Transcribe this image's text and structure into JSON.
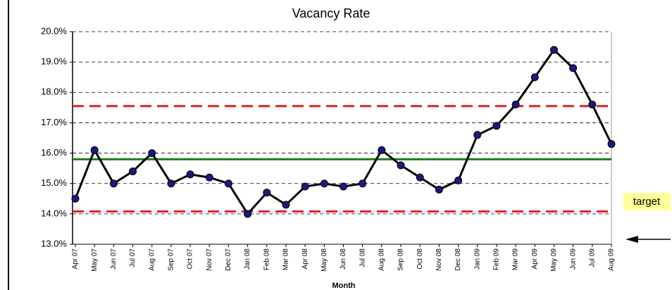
{
  "chart_data": {
    "type": "line",
    "title": "Vacancy Rate",
    "x_label": "Month",
    "categories": [
      "Apr 07",
      "May 07",
      "Jun 07",
      "Jul 07",
      "Aug 07",
      "Sep 07",
      "Oct 07",
      "Nov 07",
      "Dec 07",
      "Jan 08",
      "Feb 08",
      "Mar 08",
      "Apr 08",
      "May 08",
      "Jun 08",
      "Jul 08",
      "Aug 08",
      "Sep 08",
      "Oct 08",
      "Nov 08",
      "Dec 08",
      "Jan 09",
      "Feb 09",
      "Mar 09",
      "Apr 09",
      "May 09",
      "Jun 09",
      "Jul 09",
      "Aug 09"
    ],
    "series": [
      {
        "color": "#000000",
        "marker_color": "#1a1a80",
        "values": [
          14.5,
          16.1,
          15.0,
          15.4,
          16.0,
          15.0,
          15.3,
          15.2,
          15.0,
          14.0,
          14.7,
          14.3,
          14.9,
          15.0,
          14.9,
          15.0,
          16.1,
          15.6,
          15.2,
          14.8,
          15.1,
          16.6,
          16.9,
          17.6,
          18.5,
          19.4,
          18.8,
          17.6,
          16.3
        ]
      }
    ],
    "reference_lines": [
      {
        "value": 17.55,
        "color": "#e02020",
        "dash": true
      },
      {
        "value": 15.8,
        "color": "#1a7a1a",
        "dash": false
      },
      {
        "value": 14.08,
        "color": "#e02020",
        "dash": true
      }
    ],
    "ylim": [
      13,
      20
    ],
    "yticks": [
      {
        "value": 13,
        "label": "13.0%"
      },
      {
        "value": 14,
        "label": "14.0%"
      },
      {
        "value": 15,
        "label": "15.0%"
      },
      {
        "value": 16,
        "label": "16.0%"
      },
      {
        "value": 17,
        "label": "17.0%"
      },
      {
        "value": 18,
        "label": "18.0%"
      },
      {
        "value": 19,
        "label": "19.0%"
      },
      {
        "value": 20,
        "label": "20.0%"
      }
    ],
    "grid": true,
    "annotation": "target"
  }
}
